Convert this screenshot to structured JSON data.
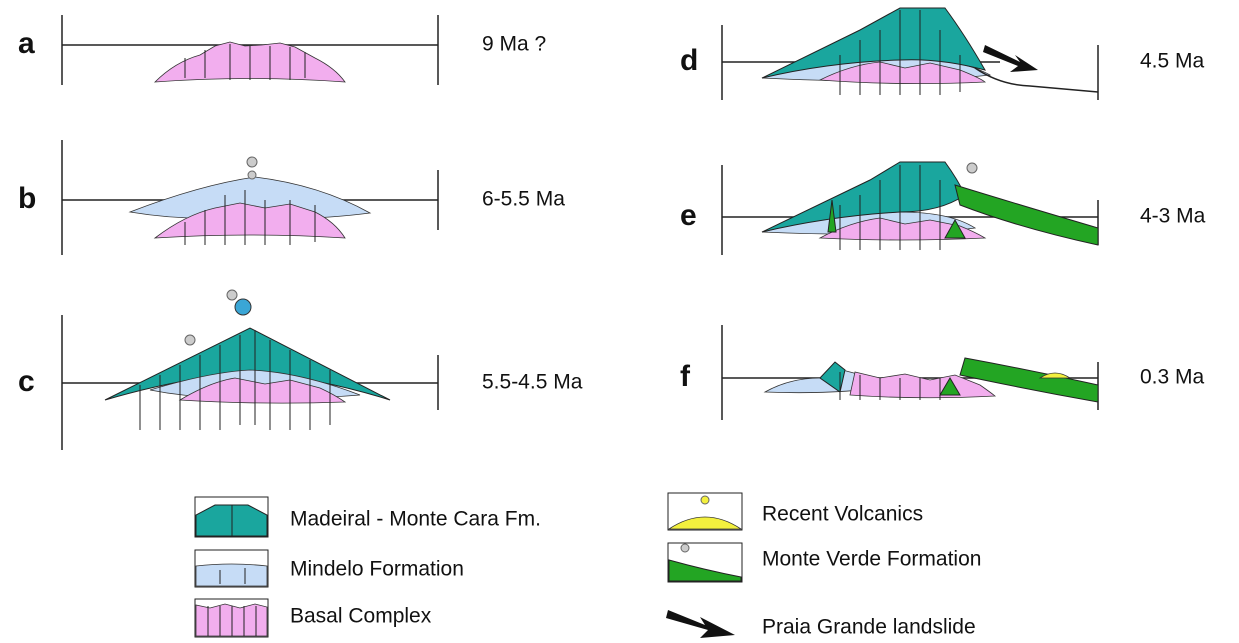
{
  "panels": [
    {
      "letter": "a",
      "age": "9 Ma ?"
    },
    {
      "letter": "b",
      "age": "6-5.5 Ma"
    },
    {
      "letter": "c",
      "age": "5.5-4.5 Ma"
    },
    {
      "letter": "d",
      "age": "4.5 Ma"
    },
    {
      "letter": "e",
      "age": "4-3 Ma"
    },
    {
      "letter": "f",
      "age": "0.3 Ma"
    }
  ],
  "legend": [
    {
      "label": "Madeiral - Monte Cara Fm."
    },
    {
      "label": "Mindelo Formation"
    },
    {
      "label": "Basal Complex"
    },
    {
      "label": "Recent Volcanics"
    },
    {
      "label": "Monte Verde Formation"
    },
    {
      "label": "Praia Grande landslide"
    }
  ]
}
